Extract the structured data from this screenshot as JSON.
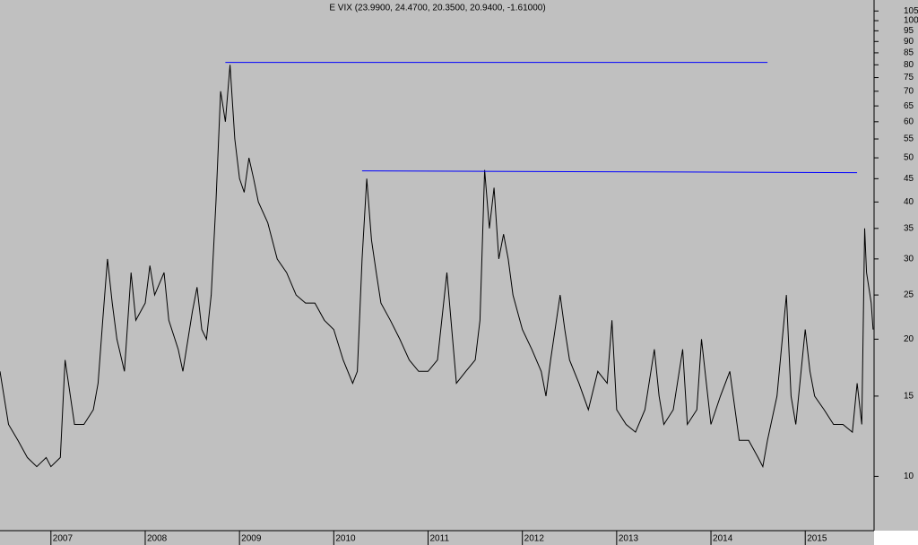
{
  "chart_data": {
    "type": "line",
    "title": "E VIX (23.9900, 24.4700, 20.3500, 20.9400, -1.61000)",
    "log_scale": true,
    "background": "#c0c0c0",
    "xlim": [
      2006.46,
      2015.73
    ],
    "xticks": [
      2007,
      2008,
      2009,
      2010,
      2011,
      2012,
      2013,
      2014,
      2015
    ],
    "ylim": [
      7.6,
      111
    ],
    "yticks": [
      10,
      15,
      20,
      25,
      30,
      35,
      40,
      45,
      50,
      55,
      60,
      65,
      70,
      75,
      80,
      85,
      90,
      95,
      100,
      105
    ],
    "x": [
      2006.46,
      2006.55,
      2006.65,
      2006.75,
      2006.85,
      2006.95,
      2007.0,
      2007.1,
      2007.15,
      2007.25,
      2007.35,
      2007.45,
      2007.5,
      2007.55,
      2007.6,
      2007.65,
      2007.7,
      2007.78,
      2007.85,
      2007.9,
      2008.0,
      2008.05,
      2008.1,
      2008.2,
      2008.25,
      2008.35,
      2008.4,
      2008.5,
      2008.55,
      2008.6,
      2008.65,
      2008.7,
      2008.75,
      2008.8,
      2008.85,
      2008.9,
      2008.95,
      2009.0,
      2009.05,
      2009.1,
      2009.15,
      2009.2,
      2009.3,
      2009.4,
      2009.5,
      2009.6,
      2009.7,
      2009.8,
      2009.9,
      2010.0,
      2010.1,
      2010.2,
      2010.25,
      2010.3,
      2010.35,
      2010.4,
      2010.45,
      2010.5,
      2010.6,
      2010.7,
      2010.8,
      2010.9,
      2011.0,
      2011.1,
      2011.2,
      2011.3,
      2011.4,
      2011.5,
      2011.55,
      2011.6,
      2011.65,
      2011.7,
      2011.75,
      2011.8,
      2011.85,
      2011.9,
      2012.0,
      2012.1,
      2012.2,
      2012.25,
      2012.3,
      2012.4,
      2012.45,
      2012.5,
      2012.6,
      2012.7,
      2012.8,
      2012.9,
      2012.95,
      2013.0,
      2013.1,
      2013.2,
      2013.3,
      2013.4,
      2013.45,
      2013.5,
      2013.6,
      2013.7,
      2013.75,
      2013.85,
      2013.9,
      2014.0,
      2014.1,
      2014.2,
      2014.3,
      2014.4,
      2014.5,
      2014.55,
      2014.6,
      2014.7,
      2014.8,
      2014.85,
      2014.9,
      2015.0,
      2015.05,
      2015.1,
      2015.2,
      2015.3,
      2015.4,
      2015.5,
      2015.55,
      2015.6,
      2015.63,
      2015.65,
      2015.7,
      2015.72
    ],
    "series": [
      {
        "color": "#000000",
        "values": [
          17,
          13,
          12,
          11,
          10.5,
          11,
          10.5,
          11,
          18,
          13,
          13,
          14,
          16,
          22,
          30,
          24,
          20,
          17,
          28,
          22,
          24,
          29,
          25,
          28,
          22,
          19,
          17,
          23,
          26,
          21,
          20,
          25,
          40,
          70,
          60,
          80,
          55,
          45,
          42,
          50,
          45,
          40,
          36,
          30,
          28,
          25,
          24,
          24,
          22,
          21,
          18,
          16,
          17,
          30,
          45,
          33,
          28,
          24,
          22,
          20,
          18,
          17,
          17,
          18,
          28,
          16,
          17,
          18,
          22,
          47,
          35,
          43,
          30,
          34,
          30,
          25,
          21,
          19,
          17,
          15,
          18,
          25,
          21,
          18,
          16,
          14,
          17,
          16,
          22,
          14,
          13,
          12.5,
          14,
          19,
          15,
          13,
          14,
          19,
          13,
          14,
          20,
          13,
          15,
          17,
          12,
          12,
          11,
          10.5,
          12,
          15,
          25,
          15,
          13,
          21,
          17,
          15,
          14,
          13,
          13,
          12.5,
          16,
          13,
          35,
          28,
          24,
          21
        ]
      }
    ],
    "hlines": {
      "color": "#0000ff",
      "lines": [
        {
          "x": [
            2008.85,
            2014.6
          ],
          "y": [
            81,
            81
          ]
        },
        {
          "x": [
            2010.3,
            2015.55
          ],
          "y": [
            46.8,
            46.4
          ]
        }
      ]
    }
  }
}
